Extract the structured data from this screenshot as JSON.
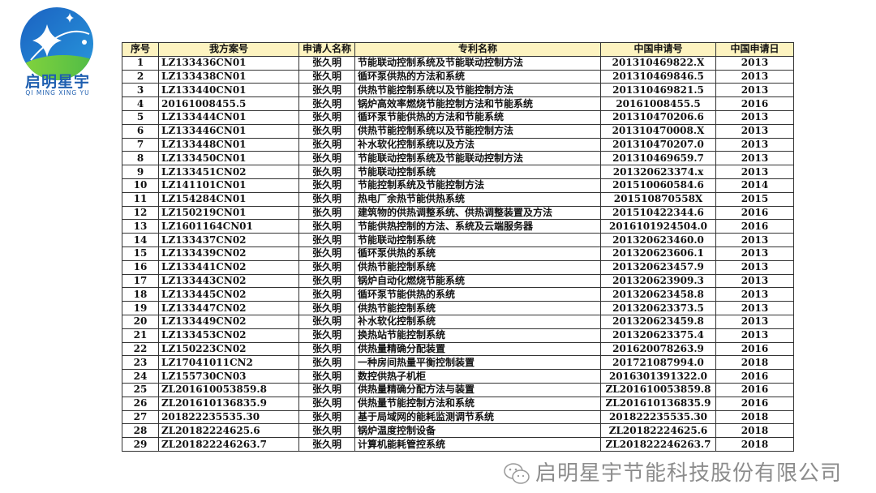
{
  "logo": {
    "title": "启明星宇",
    "subtitle": "QI MING XING YU",
    "colors": {
      "blue": "#1f6fc8",
      "green": "#5cc832"
    }
  },
  "table": {
    "headers": [
      "序号",
      "我方案号",
      "申请人名称",
      "专利名称",
      "中国申请号",
      "中国申请日"
    ],
    "rows": [
      [
        "1",
        "LZ133436CN01",
        "张久明",
        "节能联动控制系统及节能联动控制方法",
        "201310469822.X",
        "2013"
      ],
      [
        "2",
        "LZ133438CN01",
        "张久明",
        "循环泵供热的方法和系统",
        "201310469846.5",
        "2013"
      ],
      [
        "3",
        "LZ133440CN01",
        "张久明",
        "供热节能控制系统以及节能控制方法",
        "201310469821.5",
        "2013"
      ],
      [
        "4",
        "20161008455.5",
        "张久明",
        "锅炉高效率燃烧节能控制方法和节能系统",
        "20161008455.5",
        "2016"
      ],
      [
        "5",
        "LZ133444CN01",
        "张久明",
        "循环泵节能供热的方法和节能系统",
        "201310470206.6",
        "2013"
      ],
      [
        "6",
        "LZ133446CN01",
        "张久明",
        "供热节能控制系统以及节能控制方法",
        "201310470008.X",
        "2013"
      ],
      [
        "7",
        "LZ133448CN01",
        "张久明",
        "补水软化控制系统以及方法",
        "201310470207.0",
        "2013"
      ],
      [
        "8",
        "LZ133450CN01",
        "张久明",
        "节能联动控制系统及节能联动控制方法",
        "201310469659.7",
        "2013"
      ],
      [
        "9",
        "LZ133451CN02",
        "张久明",
        "节能联动控制系统",
        "201320623374.x",
        "2013"
      ],
      [
        "10",
        "LZ141101CN01",
        "张久明",
        "节能控制系统及节能控制方法",
        "201510060584.6",
        "2014"
      ],
      [
        "11",
        "LZ154284CN01",
        "张久明",
        "热电厂余热节能供热系统",
        "201510870558X",
        "2015"
      ],
      [
        "12",
        "LZ150219CN01",
        "张久明",
        "建筑物的供热调整系统、供热调整装置及方法",
        "201510422344.6",
        "2016"
      ],
      [
        "13",
        "LZ1601164CN01",
        "张久明",
        "节能供热控制的方法、系统及云端服务器",
        "2016101924504.0",
        "2016"
      ],
      [
        "14",
        "LZ133437CN02",
        "张久明",
        "节能联动控制系统",
        "201320623460.0",
        "2013"
      ],
      [
        "15",
        "LZ133439CN02",
        "张久明",
        "循环泵供热的系统",
        "201320623606.1",
        "2013"
      ],
      [
        "16",
        "LZ133441CN02",
        "张久明",
        "供热节能控制系统",
        "201320623457.9",
        "2013"
      ],
      [
        "17",
        "LZ133443CN02",
        "张久明",
        "锅炉自动化燃烧节能系统",
        "201320623909.3",
        "2013"
      ],
      [
        "18",
        "LZ133445CN02",
        "张久明",
        "循环泵节能供热的系统",
        "201320623458.8",
        "2013"
      ],
      [
        "19",
        "LZ133447CN02",
        "张久明",
        "供热节能控制系统",
        "201320623373.5",
        "2013"
      ],
      [
        "20",
        "LZ133449CN02",
        "张久明",
        "补水软化控制系统",
        "201320623459.8",
        "2013"
      ],
      [
        "21",
        "LZ133453CN02",
        "张久明",
        "换热站节能控制系统",
        "201320623375.4",
        "2013"
      ],
      [
        "22",
        "LZ150223CN02",
        "张久明",
        "供热量精确分配装置",
        "201620078263.9",
        "2016"
      ],
      [
        "23",
        "LZ17041011CN2",
        "张久明",
        "一种房间热量平衡控制装置",
        "201721087994.0",
        "2018"
      ],
      [
        "24",
        "LZ155730CN03",
        "张久明",
        "数控供热子机柜",
        "2016301391322.0",
        "2016"
      ],
      [
        "25",
        "ZL201610053859.8",
        "张久明",
        "供热量精确分配方法与装置",
        "ZL201610053859.8",
        "2016"
      ],
      [
        "26",
        "ZL201610136835.9",
        "张久明",
        "供热量节能控制方法和系统",
        "ZL201610136835.9",
        "2016"
      ],
      [
        "27",
        "201822235535.30",
        "张久明",
        "基于局域网的能耗监测调节系统",
        "201822235535.30",
        "2018"
      ],
      [
        "28",
        "ZL20182224625.6",
        "张久明",
        "锅炉温度控制设备",
        "ZL20182224625.6",
        "2018"
      ],
      [
        "29",
        "ZL201822246263.7",
        "张久明",
        "计算机能耗管控系统",
        "ZL201822246263.7",
        "2018"
      ]
    ]
  },
  "watermark": {
    "text": "启明星宇节能科技股份有限公司",
    "icon": "wechat-icon"
  }
}
